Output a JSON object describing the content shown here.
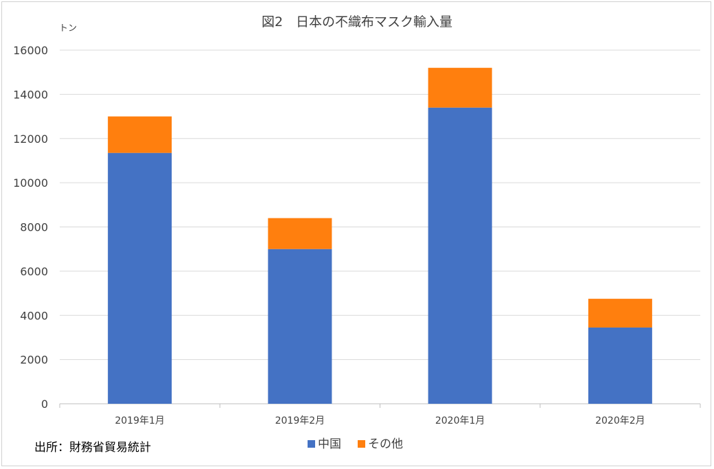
{
  "chart_data": {
    "type": "bar",
    "stacked": true,
    "title": "図2　日本の不織布マスク輸入量",
    "unit_label": "トン",
    "categories": [
      "2019年1月",
      "2019年2月",
      "2020年1月",
      "2020年2月"
    ],
    "series": [
      {
        "name": "中国",
        "color": "#4472c4",
        "values": [
          11350,
          7000,
          13400,
          3450
        ]
      },
      {
        "name": "その他",
        "color": "#ff7f0e",
        "values": [
          1650,
          1400,
          1800,
          1300
        ]
      }
    ],
    "ylim": [
      0,
      16000
    ],
    "yticks": [
      "0",
      "2000",
      "4000",
      "6000",
      "8000",
      "10000",
      "12000",
      "14000",
      "16000"
    ],
    "grid": true,
    "legend_position": "bottom"
  },
  "source_note": "出所：財務省貿易統計",
  "colors": {
    "grid": "#d9d9d9",
    "axis": "#bfbfbf",
    "text": "#404040"
  }
}
